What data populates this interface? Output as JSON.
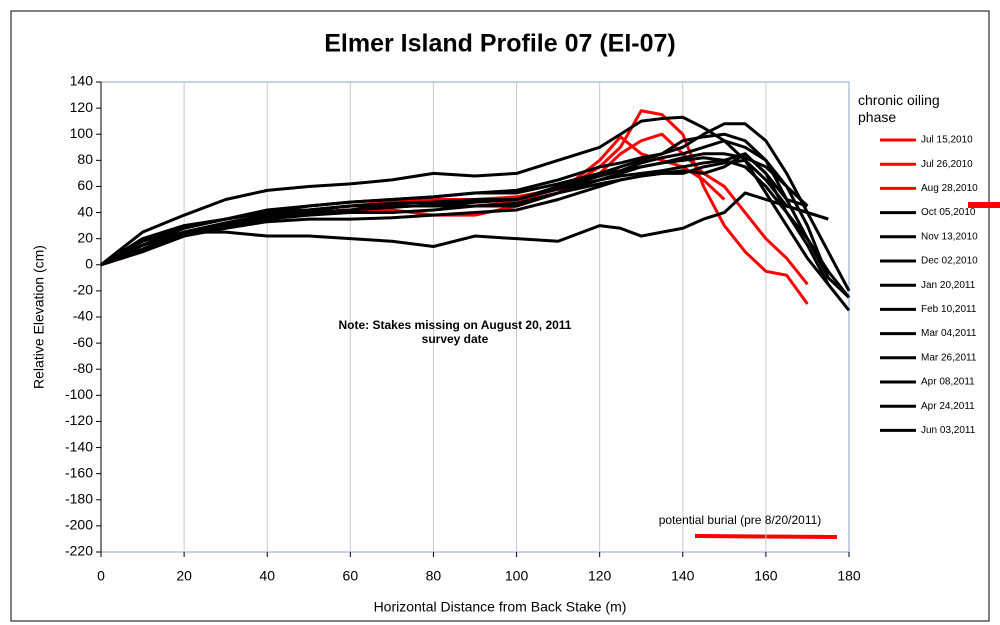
{
  "chart_data": {
    "type": "line",
    "title": "Elmer Island Profile 07 (EI-07)",
    "xlabel": "Horizontal Distance from Back Stake (m)",
    "ylabel": "Relative Elevation (cm)",
    "legend_title": "chronic oiling phase",
    "annotations": [
      "Note: Stakes missing on August 20, 2011 survey date",
      "potential burial (pre 8/20/2011)"
    ],
    "x": [
      0,
      10,
      20,
      30,
      40,
      50,
      60,
      70,
      80,
      90,
      100,
      110,
      120,
      125,
      130,
      135,
      140,
      145,
      150,
      155,
      160,
      165,
      170,
      175,
      180
    ],
    "xlim": [
      0,
      180
    ],
    "xticks": [
      0,
      20,
      40,
      60,
      80,
      100,
      120,
      140,
      160,
      180
    ],
    "ylim": [
      -220,
      140
    ],
    "yticks": [
      -220,
      -200,
      -180,
      -160,
      -140,
      -120,
      -100,
      -80,
      -60,
      -40,
      -20,
      0,
      20,
      40,
      60,
      80,
      100,
      120,
      140
    ],
    "grid": true,
    "series": [
      {
        "name": "Jul 15,2010",
        "color": "#ff0000",
        "values": [
          0,
          10,
          25,
          30,
          38,
          40,
          42,
          45,
          45,
          45,
          48,
          55,
          75,
          90,
          118,
          115,
          100,
          60,
          30,
          10,
          -5,
          -8,
          -30,
          null,
          null
        ]
      },
      {
        "name": "Jul 26,2010",
        "color": "#ff0000",
        "values": [
          0,
          12,
          22,
          32,
          38,
          42,
          45,
          48,
          50,
          50,
          52,
          58,
          70,
          85,
          95,
          100,
          85,
          70,
          60,
          40,
          20,
          5,
          -15,
          null,
          null
        ]
      },
      {
        "name": "Aug 28,2010",
        "color": "#ff0000",
        "values": [
          0,
          15,
          25,
          32,
          38,
          40,
          42,
          42,
          38,
          38,
          45,
          55,
          80,
          98,
          85,
          80,
          75,
          65,
          50,
          null,
          null,
          null,
          null,
          null,
          null
        ]
      },
      {
        "name": "Oct 05,2010",
        "color": "#000000",
        "values": [
          0,
          25,
          38,
          50,
          57,
          60,
          62,
          65,
          70,
          68,
          70,
          80,
          90,
          100,
          110,
          112,
          113,
          105,
          95,
          80,
          55,
          30,
          5,
          -15,
          -35
        ]
      },
      {
        "name": "Nov 13,2010",
        "color": "#000000",
        "values": [
          0,
          15,
          25,
          25,
          22,
          22,
          20,
          18,
          14,
          22,
          20,
          18,
          30,
          28,
          22,
          25,
          28,
          35,
          40,
          55,
          50,
          45,
          40,
          35,
          null
        ]
      },
      {
        "name": "Dec 02,2010",
        "color": "#000000",
        "values": [
          0,
          20,
          30,
          35,
          42,
          45,
          48,
          50,
          52,
          55,
          57,
          65,
          75,
          78,
          82,
          85,
          90,
          100,
          108,
          108,
          95,
          70,
          40,
          10,
          -20
        ]
      },
      {
        "name": "Jan 20,2011",
        "color": "#000000",
        "values": [
          0,
          15,
          28,
          35,
          40,
          45,
          48,
          50,
          52,
          55,
          55,
          62,
          70,
          75,
          80,
          85,
          95,
          98,
          100,
          95,
          80,
          50,
          20,
          -5,
          -25
        ]
      },
      {
        "name": "Feb 10,2011",
        "color": "#000000",
        "values": [
          0,
          18,
          28,
          35,
          40,
          42,
          45,
          45,
          45,
          45,
          47,
          55,
          65,
          70,
          75,
          78,
          80,
          82,
          80,
          75,
          60,
          40,
          20,
          -10,
          null
        ]
      },
      {
        "name": "Mar 04,2011",
        "color": "#000000",
        "values": [
          0,
          12,
          25,
          32,
          38,
          40,
          42,
          45,
          45,
          48,
          50,
          60,
          70,
          72,
          75,
          78,
          82,
          85,
          85,
          82,
          75,
          60,
          30,
          -10,
          -25
        ]
      },
      {
        "name": "Mar 26,2011",
        "color": "#000000",
        "values": [
          0,
          15,
          25,
          30,
          35,
          38,
          40,
          40,
          42,
          45,
          45,
          55,
          62,
          65,
          68,
          70,
          70,
          75,
          78,
          80,
          65,
          45,
          40,
          35,
          null
        ]
      },
      {
        "name": "Apr 08,2011",
        "color": "#000000",
        "values": [
          0,
          10,
          22,
          28,
          33,
          35,
          35,
          36,
          38,
          40,
          42,
          50,
          60,
          65,
          68,
          70,
          72,
          70,
          75,
          85,
          70,
          40,
          15,
          -15,
          null
        ]
      },
      {
        "name": "Apr 24,2011",
        "color": "#000000",
        "values": [
          0,
          12,
          24,
          30,
          36,
          40,
          42,
          44,
          46,
          48,
          50,
          58,
          68,
          72,
          78,
          82,
          85,
          90,
          95,
          90,
          80,
          60,
          45,
          null,
          null
        ]
      },
      {
        "name": "Jun 03,2011",
        "color": "#000000",
        "values": [
          0,
          15,
          25,
          32,
          38,
          42,
          45,
          47,
          48,
          50,
          50,
          58,
          65,
          68,
          70,
          72,
          75,
          78,
          80,
          85,
          70,
          50,
          45,
          null,
          null
        ]
      }
    ]
  }
}
